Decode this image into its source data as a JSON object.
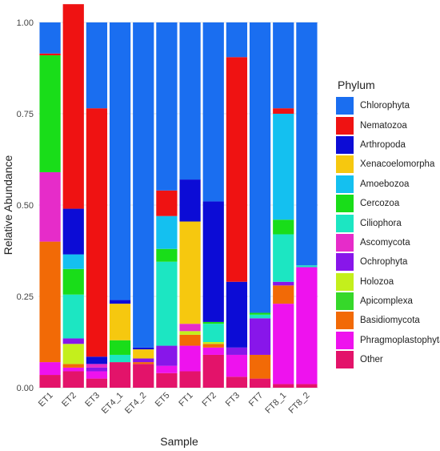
{
  "chart_data": {
    "type": "bar",
    "stacked": true,
    "xlabel": "Sample",
    "ylabel": "Relative Abundance",
    "ylim": [
      0,
      1
    ],
    "yticks": [
      "0.00",
      "0.25",
      "0.50",
      "0.75",
      "1.00"
    ],
    "legend_title": "Phylum",
    "legend_position": "right",
    "categories": [
      "ET1",
      "ET2",
      "ET3",
      "ET4_1",
      "ET4_2",
      "ET5",
      "FT1",
      "FT2",
      "FT3",
      "FT7",
      "FT8_1",
      "FT8_2"
    ],
    "series": [
      {
        "name": "Chlorophyta",
        "color": "#1a6ef0",
        "values": [
          0.085,
          0.0,
          0.235,
          0.76,
          0.89,
          0.46,
          0.43,
          0.49,
          0.095,
          0.795,
          0.235,
          0.665
        ]
      },
      {
        "name": "Nematozoa",
        "color": "#ef1212",
        "values": [
          0.005,
          0.56,
          0.68,
          0.0,
          0.0,
          0.07,
          0.0,
          0.0,
          0.615,
          0.0,
          0.015,
          0.0
        ]
      },
      {
        "name": "Arthropoda",
        "color": "#0c0cd6",
        "values": [
          0.0,
          0.125,
          0.02,
          0.01,
          0.005,
          0.0,
          0.115,
          0.33,
          0.18,
          0.0,
          0.0,
          0.0
        ]
      },
      {
        "name": "Xenacoelomorpha",
        "color": "#f6c80f",
        "values": [
          0.0,
          0.0,
          0.0,
          0.1,
          0.025,
          0.0,
          0.28,
          0.0,
          0.0,
          0.0,
          0.0,
          0.0
        ]
      },
      {
        "name": "Amoebozoa",
        "color": "#14c0f0",
        "values": [
          0.0,
          0.04,
          0.0,
          0.0,
          0.0,
          0.09,
          0.0,
          0.0,
          0.0,
          0.0,
          0.29,
          0.0
        ]
      },
      {
        "name": "Cercozoa",
        "color": "#19dd19",
        "values": [
          0.32,
          0.07,
          0.0,
          0.04,
          0.0,
          0.035,
          0.0,
          0.005,
          0.0,
          0.005,
          0.04,
          0.0
        ]
      },
      {
        "name": "Ciliophora",
        "color": "#1ce6c2",
        "values": [
          0.0,
          0.12,
          0.0,
          0.02,
          0.0,
          0.23,
          0.0,
          0.05,
          0.0,
          0.01,
          0.13,
          0.005
        ]
      },
      {
        "name": "Ascomycota",
        "color": "#e62cc9",
        "values": [
          0.19,
          0.0,
          0.01,
          0.0,
          0.0,
          0.0,
          0.02,
          0.0,
          0.0,
          0.0,
          0.0,
          0.0
        ]
      },
      {
        "name": "Ochrophyta",
        "color": "#8816ea",
        "values": [
          0.0,
          0.015,
          0.01,
          0.0,
          0.01,
          0.055,
          0.0,
          0.0,
          0.02,
          0.1,
          0.01,
          0.0
        ]
      },
      {
        "name": "Holozoa",
        "color": "#c4ef1c",
        "values": [
          0.0,
          0.055,
          0.0,
          0.0,
          0.0,
          0.0,
          0.01,
          0.005,
          0.0,
          0.0,
          0.0,
          0.0
        ]
      },
      {
        "name": "Apicomplexa",
        "color": "#36d82a",
        "values": [
          0.0,
          0.0,
          0.0,
          0.0,
          0.0,
          0.0,
          0.0,
          0.0,
          0.0,
          0.0,
          0.0,
          0.0
        ]
      },
      {
        "name": "Basidiomycota",
        "color": "#f26a06",
        "values": [
          0.33,
          0.01,
          0.0,
          0.0,
          0.005,
          0.0,
          0.03,
          0.01,
          0.0,
          0.065,
          0.05,
          0.0
        ]
      },
      {
        "name": "Phragmoplastophyta",
        "color": "#ee12ee",
        "values": [
          0.035,
          0.01,
          0.02,
          0.0,
          0.0,
          0.02,
          0.07,
          0.02,
          0.06,
          0.0,
          0.22,
          0.32
        ]
      },
      {
        "name": "Other",
        "color": "#e3136a",
        "values": [
          0.035,
          0.045,
          0.025,
          0.07,
          0.065,
          0.04,
          0.045,
          0.09,
          0.03,
          0.025,
          0.01,
          0.01
        ]
      }
    ]
  }
}
